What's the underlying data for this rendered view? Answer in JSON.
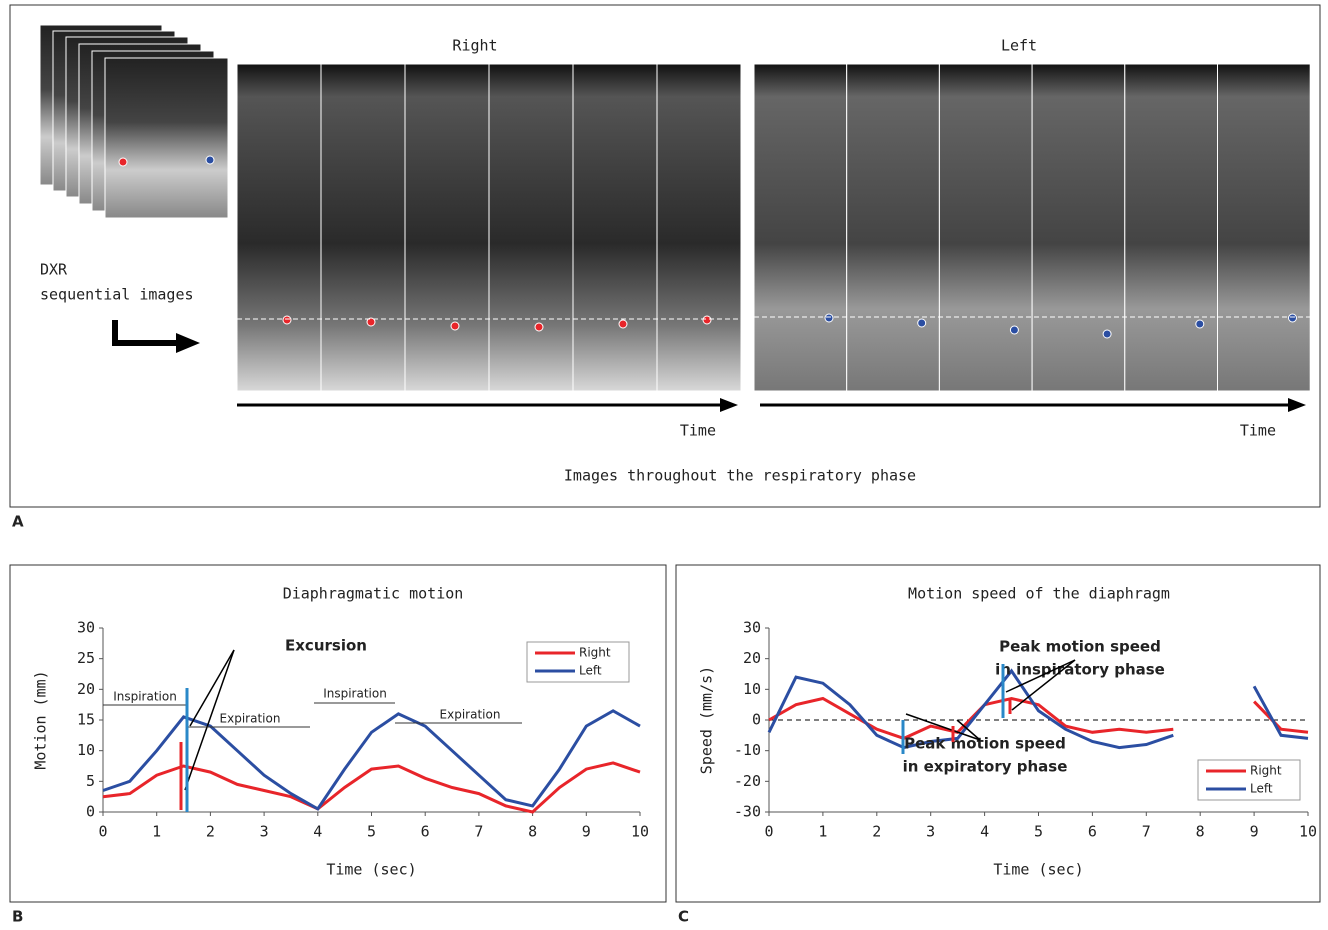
{
  "panel_a": {
    "label": "A",
    "right": "Right",
    "left": "Left",
    "dxr": [
      "DXR",
      "sequential images"
    ],
    "time_right": "Time",
    "time_left": "Time",
    "caption": "Images throughout the respiratory phase"
  },
  "panel_labels": [
    "B",
    "C"
  ],
  "chart_data": [
    {
      "type": "line",
      "title": "Diaphragmatic motion",
      "xlabel": "Time (sec)",
      "ylabel": "Motion (mm)",
      "x": [
        0,
        0.5,
        1,
        1.5,
        2,
        2.5,
        3,
        3.5,
        4,
        4.5,
        5,
        5.5,
        6,
        6.5,
        7,
        7.5,
        8,
        8.5,
        9,
        9.5,
        10
      ],
      "series": [
        {
          "name": "Right",
          "color": "#e8252a",
          "values": [
            2.5,
            3,
            6,
            7.5,
            6.5,
            4.5,
            3.5,
            2.5,
            0.5,
            4,
            7,
            7.5,
            5.5,
            4,
            3,
            1,
            0,
            4,
            7,
            8,
            6.5
          ]
        },
        {
          "name": "Left",
          "color": "#2b4ea2",
          "values": [
            3.5,
            5,
            10,
            15.5,
            14,
            10,
            6,
            3,
            0.5,
            7,
            13,
            16,
            14,
            10,
            6,
            2,
            1,
            7,
            14,
            16.5,
            14
          ]
        }
      ],
      "xlim": [
        0,
        10
      ],
      "xticks": [
        0,
        1,
        2,
        3,
        4,
        5,
        6,
        7,
        8,
        9,
        10
      ],
      "ylim": [
        0,
        30
      ],
      "yticks": [
        0,
        5,
        10,
        15,
        20,
        25,
        30
      ],
      "grid": false,
      "legend": "upper right",
      "annotations": [
        "Excursion",
        "Inspiration",
        "Expiration",
        "Inspiration",
        "Expiration"
      ]
    },
    {
      "type": "line",
      "title": "Motion speed of the diaphragm",
      "xlabel": "Time (sec)",
      "ylabel": "Speed (mm/s)",
      "x": [
        0,
        0.5,
        1,
        1.5,
        2,
        2.5,
        3,
        3.5,
        4,
        4.5,
        5,
        5.5,
        6,
        6.5,
        7,
        7.5,
        8,
        8.5,
        9,
        9.5,
        10
      ],
      "series": [
        {
          "name": "Right",
          "color": "#e8252a",
          "values": [
            0,
            5,
            7,
            2,
            -3,
            -6,
            -2,
            -4,
            5,
            7,
            5,
            -2,
            -4,
            -3,
            -4,
            -3,
            null,
            null,
            6,
            -3,
            -4
          ]
        },
        {
          "name": "Left",
          "color": "#2b4ea2",
          "values": [
            -4,
            14,
            12,
            5,
            -5,
            -9,
            -7,
            -6,
            5,
            16,
            3,
            -3,
            -7,
            -9,
            -8,
            -5,
            null,
            null,
            11,
            -5,
            -6
          ]
        }
      ],
      "xlim": [
        0,
        10
      ],
      "xticks": [
        0,
        1,
        2,
        3,
        4,
        5,
        6,
        7,
        8,
        9,
        10
      ],
      "ylim": [
        -30,
        30
      ],
      "yticks": [
        -30,
        -20,
        -10,
        0,
        10,
        20,
        30
      ],
      "grid": false,
      "legend": "lower right",
      "annotations": [
        "Peak motion speed",
        "in inspiratory phase",
        "Peak motion speed",
        "in expiratory phase"
      ]
    }
  ]
}
